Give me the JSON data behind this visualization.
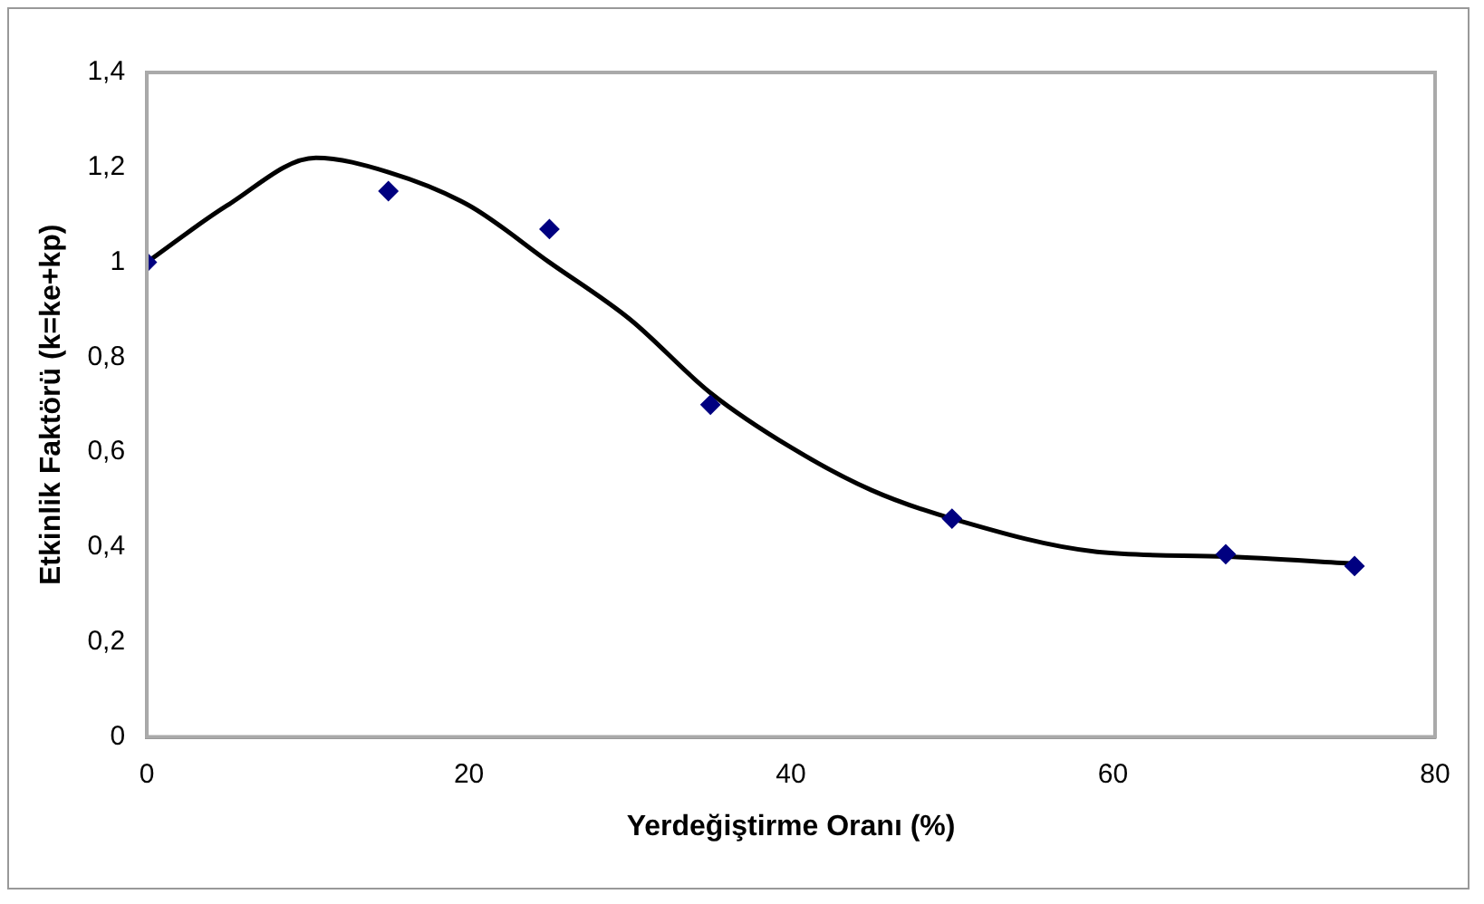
{
  "chart_data": {
    "type": "scatter",
    "xlabel": "Yerdeğiştirme Oranı (%)",
    "ylabel": "Etkinlik Faktörü (k=ke+kp)",
    "xlim": [
      0,
      80
    ],
    "xticks": [
      0,
      20,
      40,
      60,
      80
    ],
    "ylim": [
      0,
      1.4
    ],
    "yticks": [
      0,
      {
        "value": 0.2,
        "label": "0,2"
      },
      {
        "value": 0.4,
        "label": "0,4"
      },
      {
        "value": 0.6,
        "label": "0,6"
      },
      {
        "value": 0.8,
        "label": "0,8"
      },
      1,
      {
        "value": 1.2,
        "label": "1,2"
      },
      {
        "value": 1.4,
        "label": "1,4"
      }
    ],
    "grid": false,
    "legend": false,
    "series": [
      {
        "color": "#000080",
        "marker": "diamond",
        "x": [
          0,
          15,
          25,
          35,
          50,
          67,
          75
        ],
        "values": [
          1.0,
          1.15,
          1.07,
          0.7,
          0.46,
          0.385,
          0.36
        ]
      },
      {
        "type": "line",
        "color": "#000000",
        "marker": "none",
        "line_style": "solid",
        "x": [
          0,
          5,
          10.5,
          15,
          20,
          25,
          30,
          35,
          40,
          45,
          50,
          59,
          67,
          75
        ],
        "values": [
          1.0,
          1.12,
          1.22,
          1.19,
          1.12,
          1.0,
          0.88,
          0.725,
          0.61,
          0.52,
          0.46,
          0.39,
          0.38,
          0.365
        ]
      }
    ]
  }
}
